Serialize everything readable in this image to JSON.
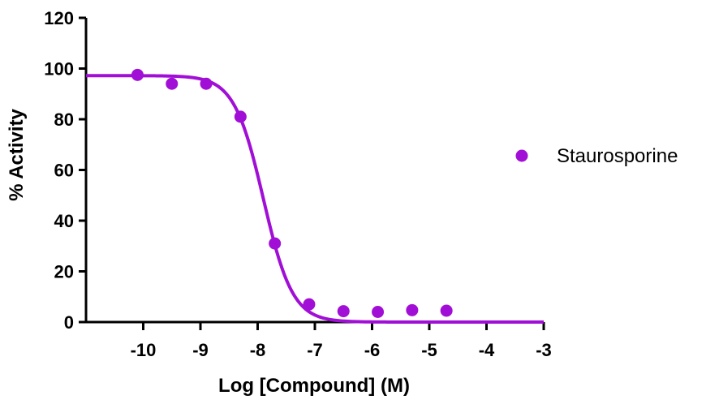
{
  "chart_data": {
    "type": "scatter",
    "title": "",
    "xlabel": "Log [Compound] (M)",
    "ylabel": "% Activity",
    "xlim": [
      -11,
      -3
    ],
    "ylim": [
      0,
      120
    ],
    "x_ticks": [
      -10,
      -9,
      -8,
      -7,
      -6,
      -5,
      -4,
      -3
    ],
    "y_ticks": [
      0,
      20,
      40,
      60,
      80,
      100,
      120
    ],
    "x_tick_labels": [
      "-10",
      "-9",
      "-8",
      "-7",
      "-6",
      "-5",
      "-4",
      "-3"
    ],
    "y_tick_labels": [
      "0",
      "20",
      "40",
      "60",
      "80",
      "100",
      "120"
    ],
    "grid": false,
    "legend_position": "right",
    "series": [
      {
        "name": "Staurosporine",
        "color": "#a10fd6",
        "points": [
          {
            "x": -10.1,
            "y": 97.5
          },
          {
            "x": -9.5,
            "y": 94
          },
          {
            "x": -8.9,
            "y": 94
          },
          {
            "x": -8.3,
            "y": 81
          },
          {
            "x": -7.7,
            "y": 31
          },
          {
            "x": -7.1,
            "y": 7
          },
          {
            "x": -6.5,
            "y": 4.3
          },
          {
            "x": -5.9,
            "y": 4
          },
          {
            "x": -5.3,
            "y": 4.7
          },
          {
            "x": -4.7,
            "y": 4.5
          }
        ],
        "fit": {
          "model": "four-parameter logistic",
          "top": 97.2,
          "bottom": 0,
          "log_ic50": -7.9,
          "hill_slope": -1.7
        }
      }
    ]
  }
}
